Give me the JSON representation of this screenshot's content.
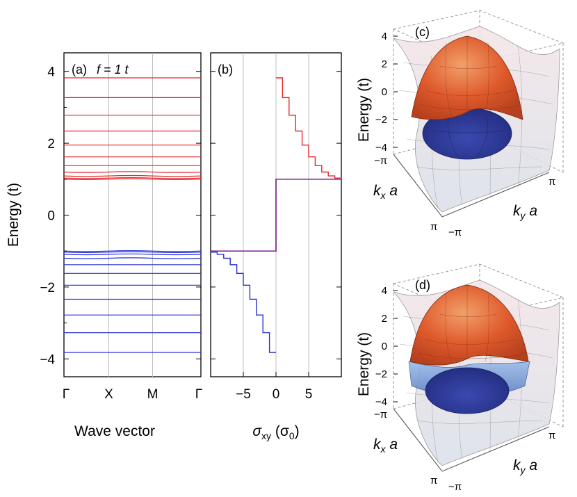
{
  "chart_data": [
    {
      "type": "line",
      "panel": "(a)",
      "annotation": "f = 1 t",
      "ylabel": "Energy (t)",
      "xlabel": "Wave vector",
      "x_ticks": [
        "Γ",
        "X",
        "M",
        "Γ"
      ],
      "y_ticks": [
        "4",
        "2",
        "0",
        "−2",
        "−4"
      ],
      "ylim": [
        -4.5,
        4.3
      ],
      "series": [
        {
          "name": "upper bands",
          "color": "#e8262a",
          "values": [
            3.82,
            3.27,
            2.78,
            2.34,
            1.95,
            1.62,
            1.38,
            1.2,
            1.09,
            1.03,
            1.0
          ]
        },
        {
          "name": "lower bands",
          "color": "#2a30d8",
          "values": [
            -3.82,
            -3.27,
            -2.78,
            -2.34,
            -1.95,
            -1.62,
            -1.38,
            -1.2,
            -1.09,
            -1.03,
            -1.0
          ]
        }
      ]
    },
    {
      "type": "line",
      "panel": "(b)",
      "xlabel": "σxy (σ0)",
      "xlabel_main": "σ",
      "xlabel_sub": "xy",
      "xlabel_unit_open": " (σ",
      "xlabel_unit_sub": "0",
      "xlabel_unit_close": ")",
      "x_ticks": [
        "−5",
        "0",
        "5"
      ],
      "xlim": [
        -10,
        10
      ],
      "ylim": [
        -4.5,
        4.3
      ],
      "series": [
        {
          "name": "sigma upper",
          "color": "#e8262a",
          "x": [
            0,
            1,
            2,
            3,
            4,
            5,
            6,
            7,
            8,
            9,
            10
          ],
          "y": [
            3.82,
            3.27,
            2.78,
            2.34,
            1.95,
            1.62,
            1.38,
            1.2,
            1.09,
            1.03,
            1.0
          ]
        },
        {
          "name": "sigma lower",
          "color": "#2a30d8",
          "x": [
            0,
            -1,
            -2,
            -3,
            -4,
            -5,
            -6,
            -7,
            -8,
            -9,
            -10
          ],
          "y": [
            -3.82,
            -3.27,
            -2.78,
            -2.34,
            -1.95,
            -1.62,
            -1.38,
            -1.2,
            -1.09,
            -1.03,
            -1.0
          ]
        },
        {
          "name": "central step",
          "color": "#111111",
          "x": [
            -10,
            0,
            0,
            10
          ],
          "y": [
            -1.0,
            -1.0,
            1.0,
            1.0
          ]
        },
        {
          "name": "gap level",
          "color": "#8a2a9a",
          "x": [
            -10,
            0,
            0,
            10
          ],
          "y": [
            -1.0,
            -1.0,
            1.0,
            1.0
          ]
        }
      ]
    },
    {
      "type": "surface3d",
      "panel": "(c)",
      "zlabel": "Energy (t)",
      "z_ticks": [
        "4",
        "2",
        "0",
        "−2",
        "−4"
      ],
      "xlabel_k": "k",
      "xlabel_sub": "x",
      "xlabel_a": " a",
      "ylabel_k": "k",
      "ylabel_sub": "y",
      "ylabel_a": " a",
      "x_range_labels": [
        "−π",
        "π"
      ],
      "y_range_labels": [
        "−π",
        "π"
      ],
      "surfaces": [
        "upper band (orange)",
        "lower band (blue)"
      ]
    },
    {
      "type": "surface3d",
      "panel": "(d)",
      "zlabel": "Energy (t)",
      "z_ticks": [
        "4",
        "2",
        "0",
        "−2",
        "−4"
      ],
      "xlabel_k": "k",
      "xlabel_sub": "x",
      "xlabel_a": " a",
      "ylabel_k": "k",
      "ylabel_sub": "y",
      "ylabel_a": " a",
      "x_range_labels": [
        "−π",
        "π"
      ],
      "y_range_labels": [
        "−π",
        "π"
      ],
      "surfaces": [
        "upper band (orange)",
        "lower band (blue)"
      ]
    }
  ]
}
